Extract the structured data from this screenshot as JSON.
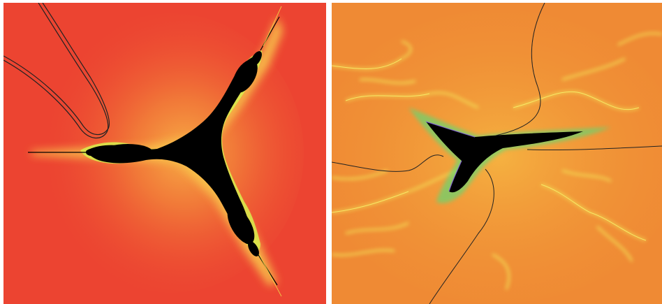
{
  "panels": [
    {
      "icon": "fractal-cubic-mandelbrot-icon",
      "background_color": "#ec4431",
      "glow_color": "#f5a23a",
      "set_color": "#000000",
      "boundary_color": "#d7ee4c",
      "curve_color": "#222222"
    },
    {
      "icon": "fractal-zoomed-filament-icon",
      "background_color": "#ef8a34",
      "glow_color": "#f6c545",
      "set_color": "#000000",
      "boundary_color": "#4fe07a",
      "curve_color": "#222222"
    }
  ]
}
